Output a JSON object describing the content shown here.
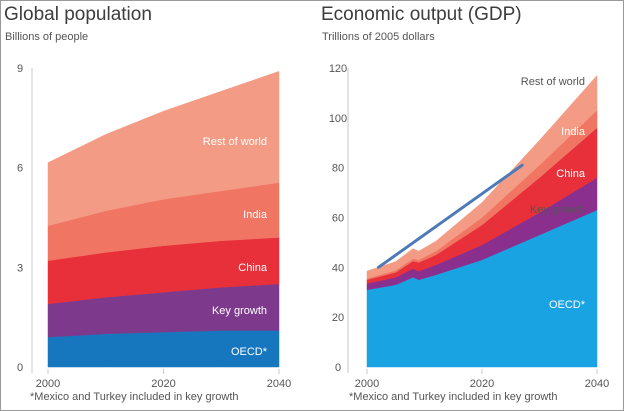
{
  "footnote": "*Mexico and Turkey included in key growth",
  "chart_data": [
    {
      "type": "area",
      "stacked": true,
      "title": "Global population",
      "subtitle": "Billions of people",
      "x": [
        2000,
        2010,
        2020,
        2030,
        2040
      ],
      "xticks": [
        2000,
        2020,
        2040
      ],
      "yticks": [
        0,
        3,
        6,
        9
      ],
      "ylim": [
        0,
        9
      ],
      "series": [
        {
          "name": "OECD*",
          "color": "#1777be",
          "values": [
            0.9,
            1.0,
            1.05,
            1.1,
            1.1
          ]
        },
        {
          "name": "Key growth",
          "color": "#7d3a8c",
          "values": [
            1.0,
            1.1,
            1.2,
            1.3,
            1.4
          ]
        },
        {
          "name": "China",
          "color": "#e8303b",
          "values": [
            1.3,
            1.35,
            1.4,
            1.4,
            1.4
          ]
        },
        {
          "name": "India",
          "color": "#f07563",
          "values": [
            1.05,
            1.25,
            1.4,
            1.5,
            1.65
          ]
        },
        {
          "name": "Rest of world",
          "color": "#f39b84",
          "values": [
            1.9,
            2.3,
            2.65,
            3.0,
            3.35
          ]
        }
      ]
    },
    {
      "type": "area",
      "stacked": true,
      "title": "Economic output (GDP)",
      "subtitle": "Trillions of 2005 dollars",
      "x": [
        2000,
        2005,
        2008,
        2009,
        2012,
        2020,
        2030,
        2040
      ],
      "xticks": [
        2000,
        2020,
        2040
      ],
      "yticks": [
        0,
        20,
        40,
        60,
        80,
        100,
        120
      ],
      "ylim": [
        0,
        120
      ],
      "series": [
        {
          "name": "OECD*",
          "color": "#1aa3e3",
          "values": [
            31,
            33,
            36,
            35,
            37,
            43,
            53,
            63
          ]
        },
        {
          "name": "Key growth",
          "color": "#8b2f8e",
          "values": [
            2.5,
            3,
            3.5,
            3.5,
            4,
            6,
            9,
            13
          ]
        },
        {
          "name": "China",
          "color": "#e8303b",
          "values": [
            1.5,
            2,
            3,
            3.5,
            4,
            8,
            14,
            20
          ]
        },
        {
          "name": "India",
          "color": "#f07563",
          "values": [
            0.5,
            0.8,
            1,
            1,
            1.5,
            3,
            5,
            7
          ]
        },
        {
          "name": "Rest of world",
          "color": "#f39b84",
          "values": [
            3,
            3.5,
            4,
            3.5,
            4,
            6,
            10,
            14
          ]
        }
      ],
      "trend_line": {
        "x": [
          2002,
          2027
        ],
        "y": [
          40,
          81
        ],
        "color": "#4f7ab8"
      }
    }
  ]
}
